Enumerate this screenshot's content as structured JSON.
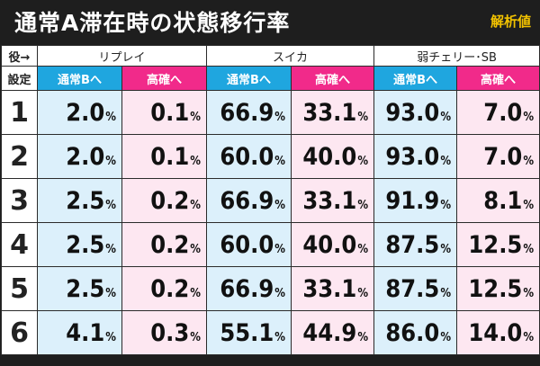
{
  "header": {
    "title": "通常A滞在時の状態移行率",
    "badge": "解析値"
  },
  "table": {
    "corner_role": "役→",
    "corner_setting": "設定",
    "groups": [
      "リプレイ",
      "スイカ",
      "弱チェリー･SB"
    ],
    "sub_b": "通常Bへ",
    "sub_h": "高確へ",
    "pct_sign": "%",
    "rows": [
      {
        "setting": "1",
        "vals": [
          "2.0",
          "0.1",
          "66.9",
          "33.1",
          "93.0",
          "7.0"
        ]
      },
      {
        "setting": "2",
        "vals": [
          "2.0",
          "0.1",
          "60.0",
          "40.0",
          "93.0",
          "7.0"
        ]
      },
      {
        "setting": "3",
        "vals": [
          "2.5",
          "0.2",
          "66.9",
          "33.1",
          "91.9",
          "8.1"
        ]
      },
      {
        "setting": "4",
        "vals": [
          "2.5",
          "0.2",
          "60.0",
          "40.0",
          "87.5",
          "12.5"
        ]
      },
      {
        "setting": "5",
        "vals": [
          "2.5",
          "0.2",
          "66.9",
          "33.1",
          "87.5",
          "12.5"
        ]
      },
      {
        "setting": "6",
        "vals": [
          "4.1",
          "0.3",
          "55.1",
          "44.9",
          "86.0",
          "14.0"
        ]
      }
    ]
  },
  "colors": {
    "background": "#1e1e1e",
    "badge": "#f2c200",
    "to_normal_b_header": "#1fa6df",
    "to_high_header": "#f12a8a",
    "to_normal_b_cell": "#dcf0fb",
    "to_high_cell": "#fde7f1"
  }
}
